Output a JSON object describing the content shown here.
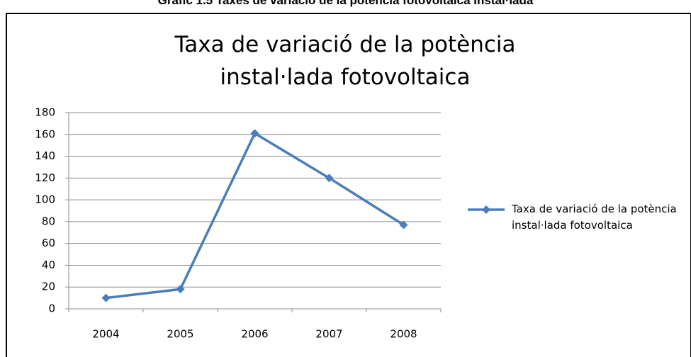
{
  "caption": "Gràfic 1.5 Taxes de variació de la potència fotovoltaica instal·lada",
  "chart_data": {
    "type": "line",
    "title": "Taxa de variació de la potència instal·lada fotovoltaica",
    "categories": [
      "2004",
      "2005",
      "2006",
      "2007",
      "2008"
    ],
    "series": [
      {
        "name": "Taxa de variació de la potència instal·lada fotovoltaica",
        "color": "#4a7ebb",
        "values": [
          10,
          18,
          161,
          120,
          77
        ]
      }
    ],
    "ylim": [
      0,
      180
    ],
    "yticks": [
      0,
      20,
      40,
      60,
      80,
      100,
      120,
      140,
      160,
      180
    ],
    "grid": true,
    "legend": "right"
  }
}
